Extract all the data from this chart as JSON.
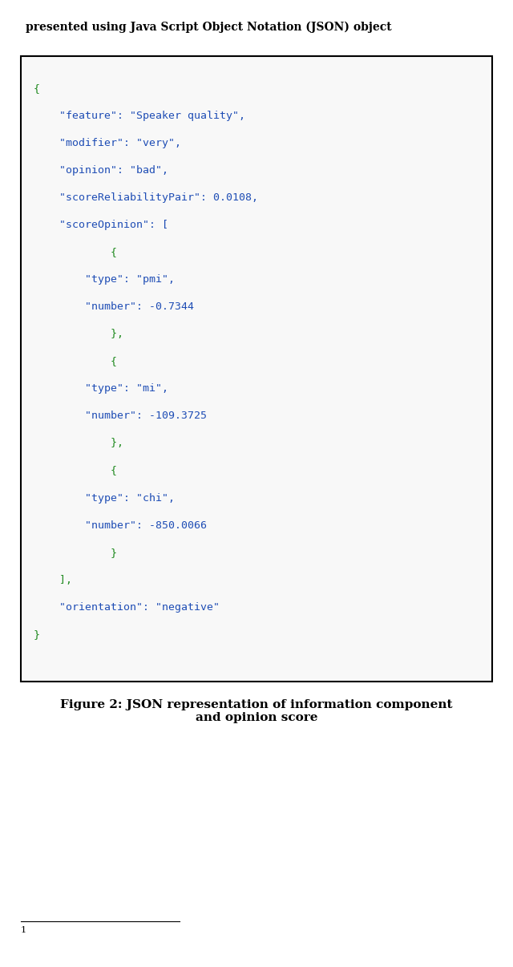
{
  "top_text": "presented using Java Script Object Notation (JSON) object",
  "caption": "Figure 2: JSON representation of information component\nand opinion score",
  "footnote": "1",
  "bg_color": "#ffffff",
  "box_bg_color": "#f8f8f8",
  "green_color": "#228B22",
  "blue_color": "#1E4DB5",
  "lines": [
    {
      "text": "{",
      "color": "green"
    },
    {
      "text": "    \"feature\": \"Speaker quality\",",
      "color": "blue"
    },
    {
      "text": "    \"modifier\": \"very\",",
      "color": "blue"
    },
    {
      "text": "    \"opinion\": \"bad\",",
      "color": "blue"
    },
    {
      "text": "    \"scoreReliabilityPair\": 0.0108,",
      "color": "blue"
    },
    {
      "text": "    \"scoreOpinion\": [",
      "color": "blue"
    },
    {
      "text": "            {",
      "color": "green"
    },
    {
      "text": "        \"type\": \"pmi\",",
      "color": "blue"
    },
    {
      "text": "        \"number\": -0.7344",
      "color": "blue"
    },
    {
      "text": "            },",
      "color": "green"
    },
    {
      "text": "            {",
      "color": "green"
    },
    {
      "text": "        \"type\": \"mi\",",
      "color": "blue"
    },
    {
      "text": "        \"number\": -109.3725",
      "color": "blue"
    },
    {
      "text": "            },",
      "color": "green"
    },
    {
      "text": "            {",
      "color": "green"
    },
    {
      "text": "        \"type\": \"chi\",",
      "color": "blue"
    },
    {
      "text": "        \"number\": -850.0066",
      "color": "blue"
    },
    {
      "text": "            }",
      "color": "green"
    },
    {
      "text": "    ],",
      "color": "green"
    },
    {
      "text": "    \"orientation\": \"negative\"",
      "color": "blue"
    },
    {
      "text": "}",
      "color": "green"
    }
  ]
}
